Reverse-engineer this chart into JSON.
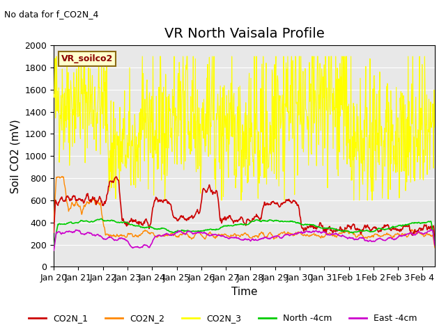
{
  "title": "VR North Vaisala Profile",
  "subtitle": "No data for f_CO2N_4",
  "ylabel": "Soil CO2 (mV)",
  "xlabel": "Time",
  "annotation": "VR_soilco2",
  "ylim": [
    0,
    2000
  ],
  "xlim": [
    0,
    15.5
  ],
  "x_tick_labels": [
    "Jan 20",
    "Jan 21",
    "Jan 22",
    "Jan 23",
    "Jan 24",
    "Jan 25",
    "Jan 26",
    "Jan 27",
    "Jan 28",
    "Jan 29",
    "Jan 30",
    "Jan 31",
    "Feb 1",
    "Feb 2",
    "Feb 3",
    "Feb 4"
  ],
  "series_colors": {
    "CO2N_1": "#cc0000",
    "CO2N_2": "#ff8800",
    "CO2N_3": "#ffff00",
    "North_4cm": "#00cc00",
    "East_4cm": "#cc00cc"
  },
  "legend_labels": [
    "CO2N_1",
    "CO2N_2",
    "CO2N_3",
    "North -4cm",
    "East -4cm"
  ],
  "bg_color": "#e8e8e8",
  "title_fontsize": 14,
  "axis_label_fontsize": 11,
  "tick_fontsize": 9
}
